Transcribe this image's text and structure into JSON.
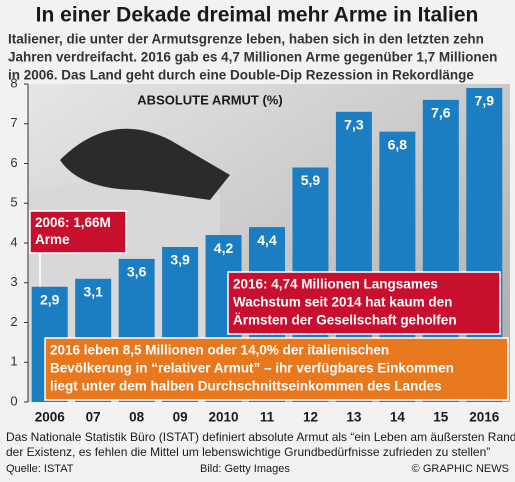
{
  "chart_data": {
    "type": "bar",
    "title": "In einer Dekade dreimal mehr Arme in Italien",
    "subtitle": [
      "Italiener, die unter der Armutsgrenze leben, haben sich in den letzten zehn",
      "Jahren verdreifacht. 2016 gab es 4,7 Millionen Arme gegenüber 1,7 Millionen",
      "in 2006. Das Land geht durch eine Double-Dip Rezession in Rekordlänge"
    ],
    "chart_label": "ABSOLUTE ARMUT (%)",
    "categories": [
      "2006",
      "07",
      "08",
      "09",
      "2010",
      "11",
      "12",
      "13",
      "14",
      "15",
      "2016"
    ],
    "values": [
      2.9,
      3.1,
      3.6,
      3.9,
      4.2,
      4.4,
      5.9,
      7.3,
      6.8,
      7.6,
      7.9
    ],
    "value_labels": [
      "2,9",
      "3,1",
      "3,6",
      "3,9",
      "4,2",
      "4,4",
      "5,9",
      "7,3",
      "6,8",
      "7,6",
      "7,9"
    ],
    "color": "#1b7ec2",
    "ylim": [
      0,
      8
    ],
    "yticks": [
      0,
      1,
      2,
      3,
      4,
      5,
      6,
      7,
      8
    ],
    "annotations": [
      {
        "lines": [
          "2006: 1,66M",
          "Arme"
        ],
        "color": "#c8102e"
      },
      {
        "lines": [
          "2016: 4,74 Millionen Langsames",
          "Wachstum seit 2014 hat kaum den",
          "Ärmsten der Gesellschaft geholfen"
        ],
        "color": "#c8102e"
      },
      {
        "lines": [
          "2016 leben 8,5 Millionen oder 14,0% der italienischen",
          "Bevölkerung in “relativer Armut” – ihr verfügbares Einkommen",
          "liegt unter dem halben Durchschnittseinkommen des Landes"
        ],
        "color": "#e8781e"
      }
    ],
    "note": [
      "Das Nationale Statistik Büro (ISTAT) definiert absolute Armut als “ein Leben am äußersten Rand",
      "der Existenz, es fehlen die Mittel um lebenswichtige Grundbedürfnisse zufrieden zu stellen”"
    ],
    "source": "Quelle: ISTAT",
    "credit": "Bild: Getty Images",
    "copyright": "© GRAPHIC NEWS"
  }
}
